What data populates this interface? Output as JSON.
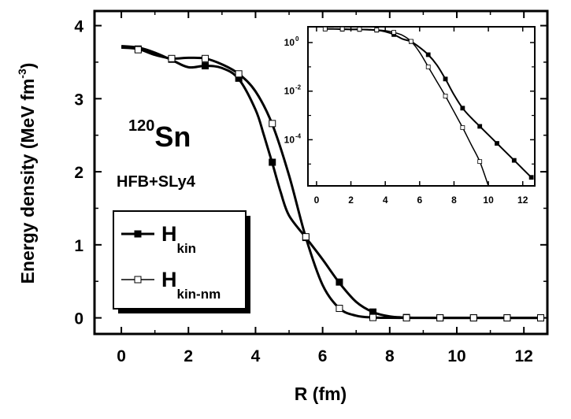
{
  "chart_data": {
    "type": "line",
    "xlabel": "R (fm)",
    "ylabel": "Energy density (MeV fm",
    "ylabel_exp": "-3",
    "ylabel_close": ")",
    "xlim": [
      -0.8,
      12.7
    ],
    "ylim": [
      -0.22,
      4.2
    ],
    "xticks": [
      0,
      2,
      4,
      6,
      8,
      10,
      12
    ],
    "yticks": [
      0,
      1,
      2,
      3,
      4
    ],
    "annotations": {
      "isotope_mass": "120",
      "isotope_symbol": "Sn",
      "method": "HFB+SLy4"
    },
    "legend_placement": "bottom-left",
    "series": [
      {
        "name": "H",
        "name_sub": "kin",
        "marker": "filled-square",
        "color": "#000000",
        "curve_x": [
          0,
          0.5,
          1,
          1.5,
          2,
          2.5,
          3,
          3.5,
          4,
          4.25,
          4.5,
          4.75,
          5,
          5.5,
          6,
          6.5,
          7,
          7.5,
          8,
          8.5,
          9,
          10,
          11,
          12.5
        ],
        "curve_y": [
          3.72,
          3.7,
          3.63,
          3.53,
          3.43,
          3.45,
          3.42,
          3.27,
          2.85,
          2.5,
          2.12,
          1.72,
          1.4,
          1.1,
          0.8,
          0.48,
          0.22,
          0.08,
          0.02,
          0.004,
          0.001,
          0,
          0,
          0
        ],
        "marker_x": [
          0.5,
          1.5,
          2.5,
          3.5,
          4.5,
          5.5,
          6.5,
          7.5,
          8.5,
          9.5,
          10.5,
          11.5,
          12.5
        ],
        "marker_y": [
          3.68,
          3.54,
          3.45,
          3.28,
          2.13,
          1.1,
          0.49,
          0.08,
          0.005,
          0,
          0,
          0,
          0
        ]
      },
      {
        "name": "H",
        "name_sub": "kin-nm",
        "marker": "open-square",
        "color": "#000000",
        "curve_x": [
          0,
          0.5,
          1,
          1.5,
          2,
          2.5,
          3,
          3.5,
          4,
          4.5,
          5,
          5.5,
          6,
          6.5,
          7,
          7.5,
          8,
          8.5,
          9,
          10,
          11,
          12.5
        ],
        "curve_y": [
          3.7,
          3.68,
          3.6,
          3.55,
          3.56,
          3.55,
          3.47,
          3.34,
          3.1,
          2.65,
          1.95,
          1.1,
          0.45,
          0.13,
          0.03,
          0.005,
          0.001,
          0,
          0,
          0,
          0,
          0
        ],
        "marker_x": [
          0.5,
          1.5,
          2.5,
          3.5,
          4.5,
          5.5,
          6.5,
          7.5,
          8.5,
          9.5,
          10.5,
          11.5,
          12.5
        ],
        "marker_y": [
          3.67,
          3.55,
          3.55,
          3.34,
          2.66,
          1.11,
          0.13,
          0.005,
          0,
          0,
          0,
          0,
          0
        ]
      }
    ],
    "inset": {
      "type": "line",
      "y_scale": "log",
      "xlim": [
        -0.5,
        12.7
      ],
      "ylog_range": [
        -5.9,
        0.65
      ],
      "xticks": [
        0,
        2,
        4,
        6,
        8,
        10,
        12
      ],
      "ytick_exps": [
        0,
        -2,
        -4
      ],
      "ytick_base": "10",
      "series": [
        {
          "name": "H",
          "name_sub": "kin",
          "marker": "filled-square",
          "x": [
            0.5,
            1,
            1.5,
            2,
            2.5,
            3,
            3.5,
            4,
            4.5,
            5,
            5.5,
            6,
            6.5,
            7,
            7.5,
            8,
            8.5,
            9,
            9.5,
            10,
            10.5,
            11,
            11.5,
            12,
            12.5
          ],
          "log10y": [
            0.56,
            0.56,
            0.55,
            0.54,
            0.54,
            0.53,
            0.51,
            0.45,
            0.33,
            0.15,
            0.04,
            -0.2,
            -0.5,
            -0.92,
            -1.5,
            -2.15,
            -2.7,
            -3.1,
            -3.45,
            -3.8,
            -4.15,
            -4.5,
            -4.85,
            -5.2,
            -5.55
          ],
          "marker_x": [
            0.5,
            1.5,
            2.5,
            3.5,
            4.5,
            5.5,
            6.5,
            7.5,
            8.5,
            9.5,
            10.5,
            11.5,
            12.5
          ],
          "marker_log10y": [
            0.56,
            0.55,
            0.54,
            0.51,
            0.33,
            0.04,
            -0.5,
            -1.5,
            -2.7,
            -3.45,
            -4.15,
            -4.85,
            -5.55
          ]
        },
        {
          "name": "H",
          "name_sub": "kin-nm",
          "marker": "open-square",
          "x": [
            0.5,
            1,
            1.5,
            2,
            2.5,
            3,
            3.5,
            4,
            4.5,
            5,
            5.5,
            6,
            6.5,
            7,
            7.5,
            8,
            8.5,
            9,
            9.5,
            10
          ],
          "log10y": [
            0.56,
            0.56,
            0.56,
            0.55,
            0.55,
            0.54,
            0.52,
            0.49,
            0.42,
            0.3,
            0.05,
            -0.4,
            -1.0,
            -1.6,
            -2.2,
            -2.85,
            -3.5,
            -4.2,
            -4.9,
            -5.9
          ],
          "marker_x": [
            0.5,
            1.5,
            2.5,
            3.5,
            4.5,
            5.5,
            6.5,
            7.5,
            8.5,
            9.5
          ],
          "marker_log10y": [
            0.56,
            0.56,
            0.55,
            0.52,
            0.42,
            0.05,
            -1.0,
            -2.2,
            -3.5,
            -4.9
          ]
        }
      ]
    }
  }
}
